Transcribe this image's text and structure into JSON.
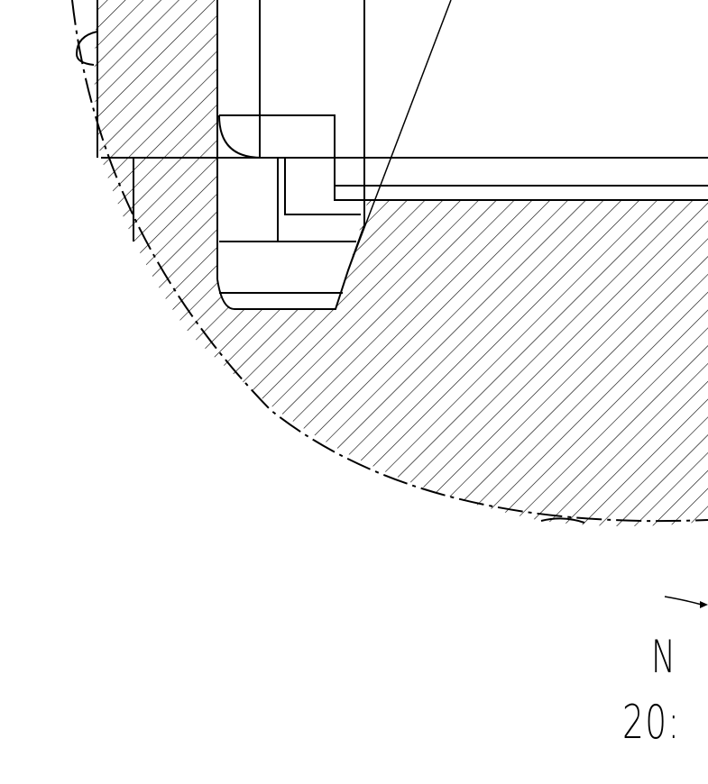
{
  "drawing": {
    "detail_id": "N",
    "detail_scale": "20:"
  }
}
